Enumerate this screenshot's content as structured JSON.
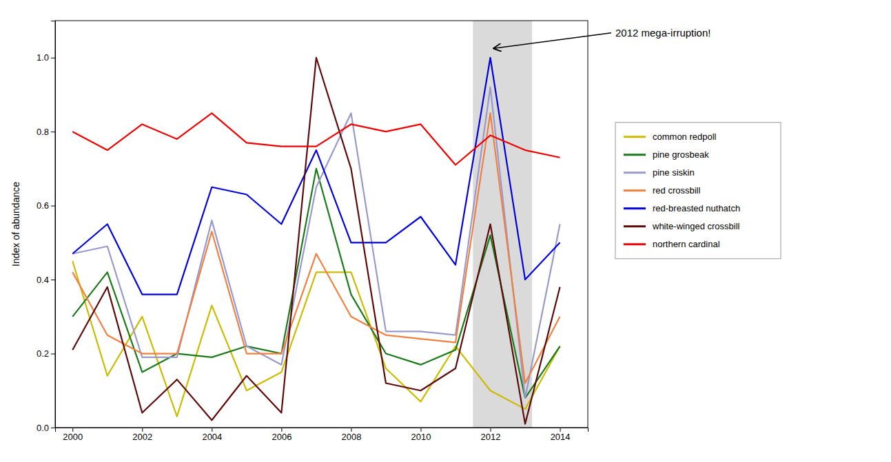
{
  "chart_data": {
    "type": "line",
    "ylabel": "Index of abundance",
    "x": [
      2000,
      2001,
      2002,
      2003,
      2004,
      2005,
      2006,
      2007,
      2008,
      2009,
      2010,
      2011,
      2012,
      2013,
      2014
    ],
    "series": [
      {
        "name": "common redpoll",
        "color": "#ccbb00",
        "values": [
          0.45,
          0.14,
          0.3,
          0.03,
          0.33,
          0.1,
          0.15,
          0.42,
          0.42,
          0.16,
          0.07,
          0.22,
          0.1,
          0.05,
          0.22
        ]
      },
      {
        "name": "pine grosbeak",
        "color": "#1a7a1a",
        "values": [
          0.3,
          0.42,
          0.15,
          0.2,
          0.19,
          0.22,
          0.2,
          0.7,
          0.36,
          0.2,
          0.17,
          0.21,
          0.52,
          0.08,
          0.22
        ]
      },
      {
        "name": "pine siskin",
        "color": "#9999cc",
        "values": [
          0.47,
          0.49,
          0.19,
          0.19,
          0.56,
          0.22,
          0.17,
          0.65,
          0.85,
          0.26,
          0.26,
          0.25,
          0.92,
          0.08,
          0.55
        ]
      },
      {
        "name": "red crossbill",
        "color": "#f08040",
        "values": [
          0.42,
          0.25,
          0.2,
          0.2,
          0.53,
          0.2,
          0.2,
          0.47,
          0.3,
          0.25,
          0.24,
          0.23,
          0.85,
          0.12,
          0.3
        ]
      },
      {
        "name": "red-breasted nuthatch",
        "color": "#0000dd",
        "values": [
          0.47,
          0.55,
          0.36,
          0.36,
          0.65,
          0.63,
          0.55,
          0.75,
          0.5,
          0.5,
          0.57,
          0.44,
          1.0,
          0.4,
          0.5
        ]
      },
      {
        "name": "white-winged crossbill",
        "color": "#5c0a0a",
        "values": [
          0.21,
          0.38,
          0.04,
          0.13,
          0.02,
          0.14,
          0.04,
          1.0,
          0.7,
          0.12,
          0.1,
          0.16,
          0.55,
          0.01,
          0.38
        ]
      },
      {
        "name": "northern cardinal",
        "color": "#ee0000",
        "values": [
          0.8,
          0.75,
          0.82,
          0.78,
          0.85,
          0.77,
          0.76,
          0.76,
          0.82,
          0.8,
          0.82,
          0.71,
          0.79,
          0.75,
          0.73
        ]
      }
    ],
    "xlim": [
      1999.5,
      2014.8
    ],
    "xticks": [
      2000,
      2002,
      2004,
      2006,
      2008,
      2010,
      2012,
      2014
    ],
    "ylim": [
      0.0,
      1.1
    ],
    "yticks": [
      {
        "value": 0.0,
        "label": "0.0"
      },
      {
        "value": 0.2,
        "label": "0.2"
      },
      {
        "value": 0.4,
        "label": "0.4"
      },
      {
        "value": 0.6,
        "label": "0.6"
      },
      {
        "value": 0.8,
        "label": "0.8"
      },
      {
        "value": 1.0,
        "label": "1.0"
      }
    ],
    "shaded_span": [
      2011.5,
      2013.2
    ],
    "annotations": [
      {
        "text": "2012 mega-irruption!",
        "x": 2012.1,
        "y": 1.025
      }
    ],
    "legend": "right",
    "grid": false
  }
}
